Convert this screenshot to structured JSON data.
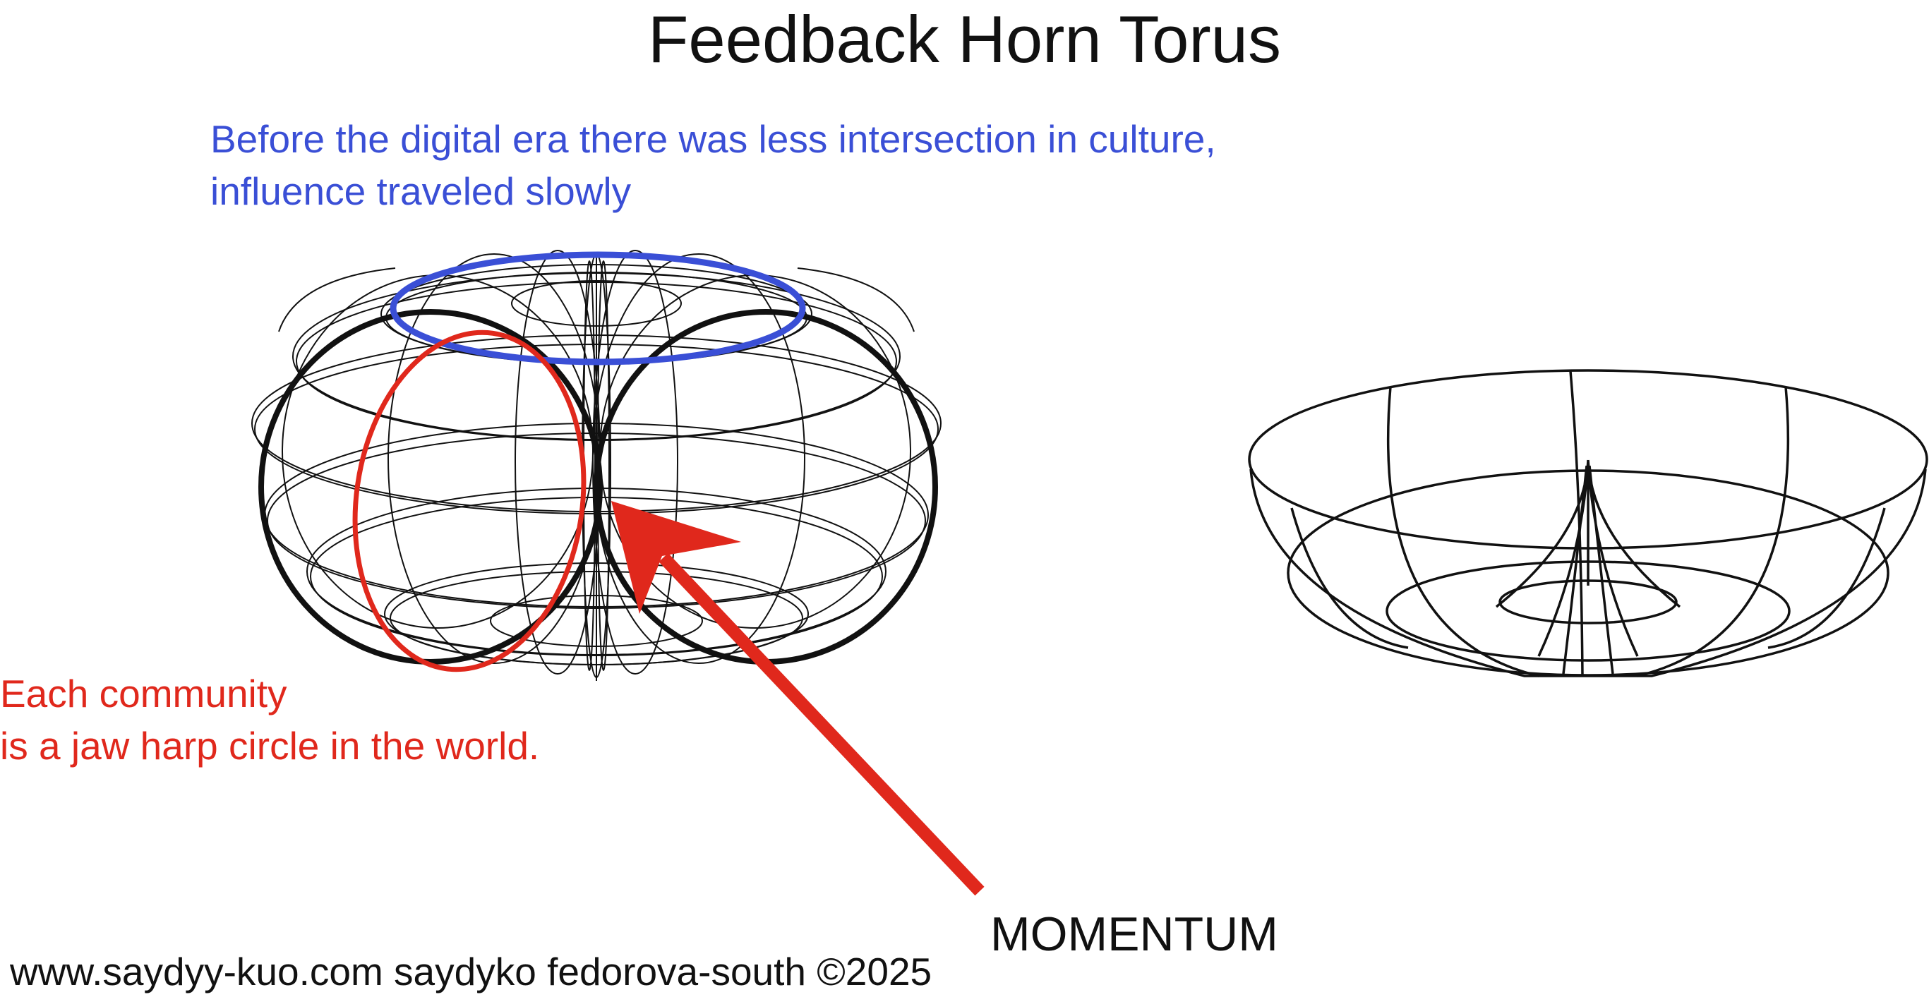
{
  "title": "Feedback Horn Torus",
  "blue_note": {
    "line1": "Before the digital era there was less intersection in culture,",
    "line2": "influence traveled slowly"
  },
  "red_note": {
    "line1": "Each community",
    "line2": "is a jaw harp circle in the world."
  },
  "momentum_label": "MOMENTUM",
  "credit": "www.saydyy-kuo.com saydyko fedorova-south ©2025",
  "colors": {
    "blue_accent": "#3a4fd6",
    "red_accent": "#e0281c",
    "line": "#111111"
  }
}
